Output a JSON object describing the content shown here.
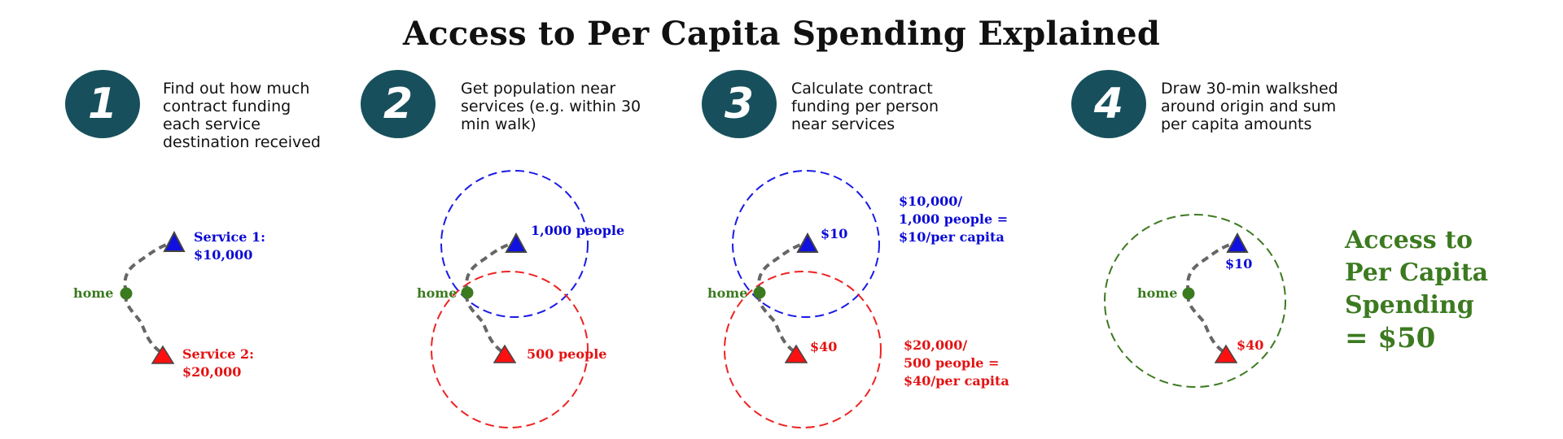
{
  "title": "Access to Per Capita Spending Explained",
  "colors": {
    "step_circle": "#17505c",
    "service_1": "#0a0ad6",
    "service_2": "#e41212",
    "home": "#3c7a20",
    "path": "#666666"
  },
  "icons": {
    "home": "home-dot-icon",
    "service": "service-triangle-icon"
  },
  "steps": [
    {
      "number": "1",
      "text": "Find out how much contract funding each service destination received",
      "home_label": "home",
      "service1_label": [
        "Service 1:",
        "$10,000"
      ],
      "service2_label": [
        "Service 2:",
        "$20,000"
      ]
    },
    {
      "number": "2",
      "text": "Get population near services (e.g. within 30 min walk)",
      "home_label": "home",
      "service1_label": "1,000 people",
      "service2_label": "500 people"
    },
    {
      "number": "3",
      "text": "Calculate contract funding per person near services",
      "home_label": "home",
      "service1_label": "$10",
      "service2_label": "$40",
      "calc1": [
        "$10,000/",
        "1,000 people =",
        "$10/per capita"
      ],
      "calc2": [
        "$20,000/",
        "500 people =",
        "$40/per capita"
      ]
    },
    {
      "number": "4",
      "text": "Draw 30-min walkshed around origin and sum per capita amounts",
      "home_label": "home",
      "service1_label": "$10",
      "service2_label": "$40"
    }
  ],
  "result": {
    "line1": "Access to",
    "line2": "Per Capita",
    "line3": "Spending",
    "total": "= $50"
  }
}
